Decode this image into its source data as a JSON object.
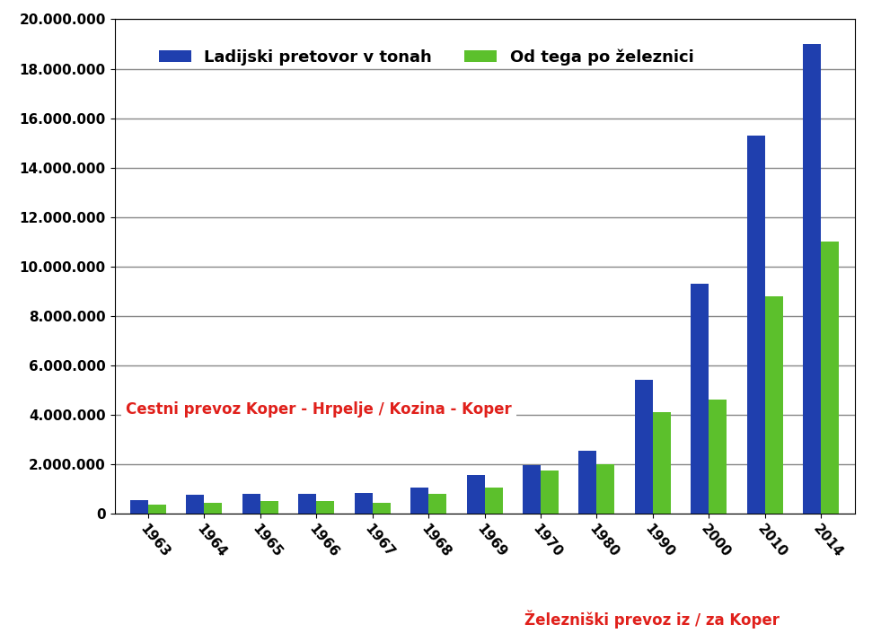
{
  "chart_data": {
    "type": "bar",
    "categories": [
      "1963",
      "1964",
      "1965",
      "1966",
      "1967",
      "1968",
      "1969",
      "1970",
      "1980",
      "1990",
      "2000",
      "2010",
      "2014"
    ],
    "series": [
      {
        "name": "Ladijski pretovor v tonah",
        "color": "#1f3fae",
        "values": [
          550000,
          750000,
          800000,
          800000,
          850000,
          1050000,
          1550000,
          1950000,
          2550000,
          5400000,
          9300000,
          15300000,
          19000000
        ]
      },
      {
        "name": "Od tega po železnici",
        "color": "#5cc02c",
        "values": [
          350000,
          450000,
          500000,
          500000,
          450000,
          800000,
          1050000,
          1750000,
          2000000,
          4100000,
          4600000,
          8800000,
          11000000
        ]
      }
    ],
    "ylim": [
      0,
      20000000
    ],
    "yticks": [
      0,
      {
        "value": 2000000,
        "label": "2.000.000"
      },
      {
        "value": 4000000,
        "label": "4.000.000"
      },
      {
        "value": 6000000,
        "label": "6.000.000"
      },
      {
        "value": 8000000,
        "label": "8.000.000"
      },
      {
        "value": 10000000,
        "label": "10.000.000"
      },
      {
        "value": 12000000,
        "label": "12.000.000"
      },
      {
        "value": 14000000,
        "label": "14.000.000"
      },
      {
        "value": 16000000,
        "label": "16.000.000"
      },
      {
        "value": 18000000,
        "label": "18.000.000"
      },
      {
        "value": 20000000,
        "label": "20.000.000"
      }
    ],
    "grid": true,
    "legend": "upper left",
    "annotations": [
      {
        "text": "Cestni prevoz Koper - Hrpelje / Kozina - Koper",
        "color": "#e0201b"
      },
      {
        "text": "Železniški prevoz iz / za Koper",
        "color": "#e0201b"
      }
    ]
  }
}
